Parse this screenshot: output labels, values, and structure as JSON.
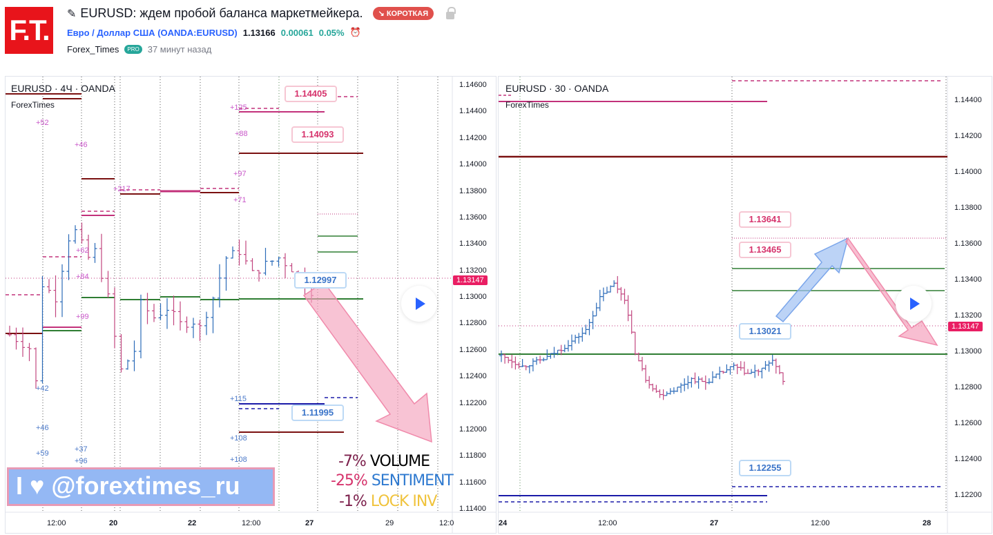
{
  "header": {
    "logo": "F.T.",
    "title": "EURUSD: ждем пробой баланса маркетмейкера.",
    "direction_badge": "↘ КОРОТКАЯ",
    "instrument_name": "Евро / Доллар США",
    "instrument_symbol": "(OANDA:EURUSD)",
    "price": "1.13166",
    "change": "0.00061",
    "change_pct": "0.05%",
    "author": "Forex_Times",
    "author_badge": "PRO",
    "published": "37 минут назад"
  },
  "left_chart": {
    "title": "EURUSD · 4Ч · OANDA",
    "indicator": "ForexTimes",
    "price_ticks": [
      "1.14600",
      "1.14400",
      "1.14200",
      "1.14000",
      "1.13800",
      "1.13600",
      "1.13400",
      "1.13200",
      "1.13000",
      "1.12800",
      "1.12600",
      "1.12400",
      "1.12200",
      "1.12000",
      "1.11800",
      "1.11600",
      "1.11400"
    ],
    "time_ticks": [
      "12:00",
      "20",
      "22",
      "12:00",
      "27",
      "29",
      "12:0"
    ],
    "current_price": "1.13147",
    "callouts": [
      "1.14405",
      "1.14093",
      "1.12997",
      "1.11995"
    ],
    "pink_labels": [
      "+52",
      "+46",
      "+217",
      "+125",
      "+88",
      "+97",
      "+71",
      "+62",
      "+84",
      "+99"
    ],
    "blue_labels": [
      "+42",
      "+46",
      "+59",
      "+37",
      "+96",
      "+115",
      "+108",
      "+108"
    ],
    "promo": "I ♥ @forextimes_ru",
    "stats": [
      {
        "pct": "-7%",
        "label": "VOLUME",
        "pct_color": "#7b1f4b",
        "label_color": "#000000"
      },
      {
        "pct": "-25%",
        "label": "SENTIMENT",
        "pct_color": "#d6336c",
        "label_color": "#2f7ad0"
      },
      {
        "pct": "-1%",
        "label": "LOCK INV",
        "pct_color": "#7b1f4b",
        "label_color": "#f0c33c"
      }
    ]
  },
  "right_chart": {
    "title": "EURUSD · 30 · OANDA",
    "indicator": "ForexTimes",
    "price_ticks": [
      "1.14400",
      "1.14200",
      "1.14000",
      "1.13800",
      "1.13600",
      "1.13400",
      "1.13200",
      "1.13000",
      "1.12800",
      "1.12600",
      "1.12400",
      "1.12200"
    ],
    "time_ticks": [
      "24",
      "12:00",
      "27",
      "12:00",
      "28"
    ],
    "current_price": "1.13147",
    "callouts": [
      "1.13641",
      "1.13465",
      "1.13021",
      "1.12255"
    ]
  },
  "chart_data": [
    {
      "type": "ohlc",
      "name": "EURUSD 4H",
      "ylim": [
        1.114,
        1.146
      ],
      "approx_path": [
        [
          0,
          1.1272
        ],
        [
          3,
          1.1262
        ],
        [
          4,
          1.1236
        ],
        [
          5,
          1.131
        ],
        [
          7,
          1.13
        ],
        [
          9,
          1.1345
        ],
        [
          10,
          1.135
        ],
        [
          12,
          1.133
        ],
        [
          13,
          1.1335
        ],
        [
          15,
          1.13
        ],
        [
          16,
          1.127
        ],
        [
          17,
          1.1245
        ],
        [
          19,
          1.126
        ],
        [
          20,
          1.1295
        ],
        [
          22,
          1.1285
        ],
        [
          24,
          1.1292
        ],
        [
          26,
          1.128
        ],
        [
          28,
          1.1282
        ],
        [
          29,
          1.1277
        ],
        [
          31,
          1.13
        ],
        [
          33,
          1.133
        ],
        [
          35,
          1.1335
        ],
        [
          37,
          1.1318
        ],
        [
          39,
          1.1325
        ],
        [
          41,
          1.133
        ],
        [
          43,
          1.1322
        ],
        [
          45,
          1.131
        ],
        [
          46,
          1.1305
        ]
      ],
      "up_color": "#2a6ab8",
      "down_color": "#c2457f"
    },
    {
      "type": "ohlc",
      "name": "EURUSD 30m",
      "ylim": [
        1.1215,
        1.1452
      ],
      "approx_path": [
        [
          0,
          1.1298
        ],
        [
          6,
          1.1292
        ],
        [
          12,
          1.1296
        ],
        [
          18,
          1.1303
        ],
        [
          24,
          1.1312
        ],
        [
          28,
          1.133
        ],
        [
          32,
          1.1338
        ],
        [
          35,
          1.133
        ],
        [
          38,
          1.13
        ],
        [
          41,
          1.1285
        ],
        [
          45,
          1.1276
        ],
        [
          50,
          1.128
        ],
        [
          54,
          1.1285
        ],
        [
          58,
          1.1283
        ],
        [
          62,
          1.1288
        ],
        [
          66,
          1.1292
        ],
        [
          70,
          1.1288
        ],
        [
          74,
          1.129
        ],
        [
          77,
          1.1296
        ],
        [
          80,
          1.1283
        ]
      ],
      "up_color": "#2a6ab8",
      "down_color": "#c2457f"
    }
  ],
  "colors": {
    "pink": "#c2307a",
    "darkred": "#7a1010",
    "green": "#2e7d32",
    "blue": "#1a1aa8",
    "badge": "#e91e63"
  }
}
